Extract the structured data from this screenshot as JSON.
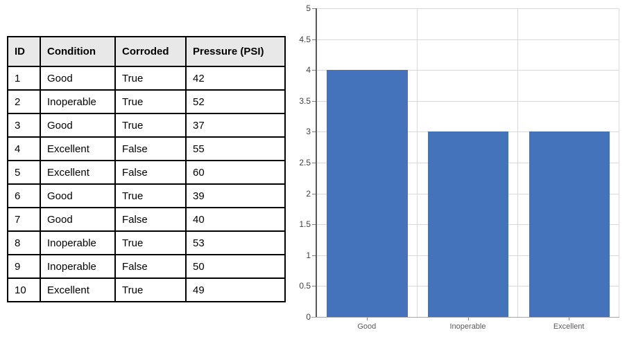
{
  "table": {
    "headers": [
      "ID",
      "Condition",
      "Corroded",
      "Pressure (PSI)"
    ],
    "rows": [
      {
        "id": "1",
        "condition": "Good",
        "corroded": "True",
        "pressure": "42"
      },
      {
        "id": "2",
        "condition": "Inoperable",
        "corroded": "True",
        "pressure": "52"
      },
      {
        "id": "3",
        "condition": "Good",
        "corroded": "True",
        "pressure": "37"
      },
      {
        "id": "4",
        "condition": "Excellent",
        "corroded": "False",
        "pressure": "55"
      },
      {
        "id": "5",
        "condition": "Excellent",
        "corroded": "False",
        "pressure": "60"
      },
      {
        "id": "6",
        "condition": "Good",
        "corroded": "True",
        "pressure": "39"
      },
      {
        "id": "7",
        "condition": "Good",
        "corroded": "False",
        "pressure": "40"
      },
      {
        "id": "8",
        "condition": "Inoperable",
        "corroded": "True",
        "pressure": "53"
      },
      {
        "id": "9",
        "condition": "Inoperable",
        "corroded": "False",
        "pressure": "50"
      },
      {
        "id": "10",
        "condition": "Excellent",
        "corroded": "True",
        "pressure": "49"
      }
    ]
  },
  "chart_data": {
    "type": "bar",
    "categories": [
      "Good",
      "Inoperable",
      "Excellent"
    ],
    "values": [
      4,
      3,
      3
    ],
    "title": "",
    "xlabel": "",
    "ylabel": "",
    "ylim": [
      0,
      5
    ],
    "ytick_step": 0.5,
    "yticks": [
      0,
      0.5,
      1,
      1.5,
      2,
      2.5,
      3,
      3.5,
      4,
      4.5,
      5
    ],
    "grid": true,
    "legend_position": "none",
    "bar_color": "#4472BB",
    "gridline_color": "#D9D9D9",
    "yaxis_color": "#595959",
    "xaxis_color": "#A6A6A6",
    "tick_color": "#808080",
    "ytick_label_color": "#404040",
    "xtick_label_color": "#595959"
  },
  "colors": {
    "table_header_bg": "#E8E8E8",
    "table_border": "#000000",
    "background": "#FFFFFF"
  }
}
